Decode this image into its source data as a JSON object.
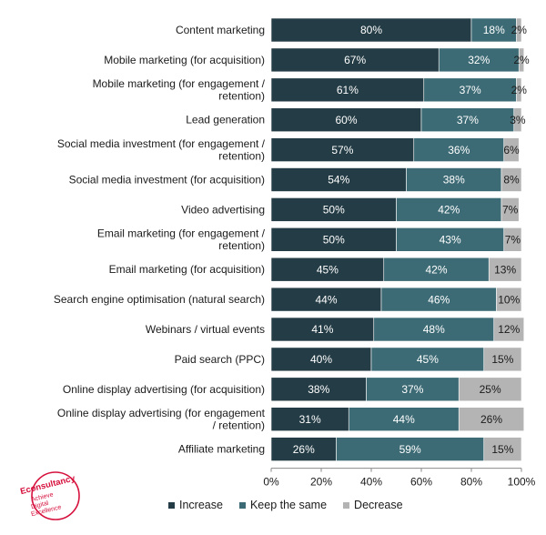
{
  "chart_data": {
    "type": "bar",
    "orientation": "horizontal",
    "stacked": true,
    "categories": [
      [
        "Content marketing"
      ],
      [
        "Mobile marketing (for acquisition)"
      ],
      [
        "Mobile marketing (for engagement /",
        "retention)"
      ],
      [
        "Lead generation"
      ],
      [
        "Social media investment (for engagement /",
        "retention)"
      ],
      [
        "Social media investment (for acquisition)"
      ],
      [
        "Video advertising"
      ],
      [
        "Email marketing (for engagement /",
        "retention)"
      ],
      [
        "Email marketing (for acquisition)"
      ],
      [
        "Search engine optimisation (natural search)"
      ],
      [
        "Webinars / virtual events"
      ],
      [
        "Paid search (PPC)"
      ],
      [
        "Online display advertising (for acquisition)"
      ],
      [
        "Online display advertising (for engagement",
        "/ retention)"
      ],
      [
        "Affiliate marketing"
      ]
    ],
    "series": [
      {
        "name": "Increase",
        "color": "#243c45",
        "label_color": "#ffffff",
        "values": [
          80,
          67,
          61,
          60,
          57,
          54,
          50,
          50,
          45,
          44,
          41,
          40,
          38,
          31,
          26
        ]
      },
      {
        "name": "Keep the same",
        "color": "#3d6b75",
        "label_color": "#ffffff",
        "values": [
          18,
          32,
          37,
          37,
          36,
          38,
          42,
          43,
          42,
          46,
          48,
          45,
          37,
          44,
          59
        ]
      },
      {
        "name": "Decrease",
        "color": "#b4b4b4",
        "label_color": "#1a1a1a",
        "values": [
          2,
          2,
          2,
          3,
          6,
          8,
          7,
          7,
          13,
          10,
          12,
          15,
          25,
          26,
          15
        ]
      }
    ],
    "xlim": [
      0,
      100
    ],
    "xticks": [
      "0%",
      "20%",
      "40%",
      "60%",
      "80%",
      "100%"
    ],
    "value_suffix": "%",
    "legend_position": "bottom",
    "grid": false
  },
  "logo": {
    "brand": "Econsultancy",
    "tagline": [
      "Achieve",
      "Digital",
      "Excellence"
    ],
    "color": "#d6113d"
  }
}
